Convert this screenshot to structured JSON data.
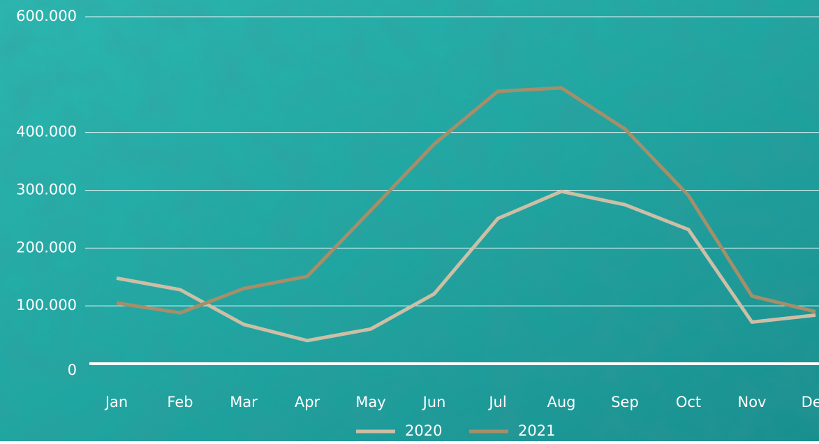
{
  "chart_data": {
    "type": "line",
    "categories": [
      "Jan",
      "Feb",
      "Mar",
      "Apr",
      "May",
      "Jun",
      "Jul",
      "Aug",
      "Sep",
      "Oct",
      "Nov",
      "Dec"
    ],
    "series": [
      {
        "name": "2020",
        "color": "#cdbfa6",
        "values": [
          148000,
          128000,
          68000,
          40000,
          60000,
          121000,
          251000,
          298000,
          275000,
          232000,
          72000,
          84000
        ]
      },
      {
        "name": "2021",
        "color": "#a48f6a",
        "values": [
          105000,
          88000,
          130000,
          151000,
          265000,
          380000,
          471000,
          477000,
          406000,
          291000,
          117000,
          90000
        ]
      }
    ],
    "ylim": [
      0,
      600000
    ],
    "yticks": [
      {
        "value": 0,
        "label": "0"
      },
      {
        "value": 100000,
        "label": "100.000"
      },
      {
        "value": 200000,
        "label": "200.000"
      },
      {
        "value": 300000,
        "label": "300.000"
      },
      {
        "value": 400000,
        "label": "400.000"
      },
      {
        "value": 600000,
        "label": "600.000"
      }
    ],
    "grid": true,
    "legend": "bottom"
  }
}
